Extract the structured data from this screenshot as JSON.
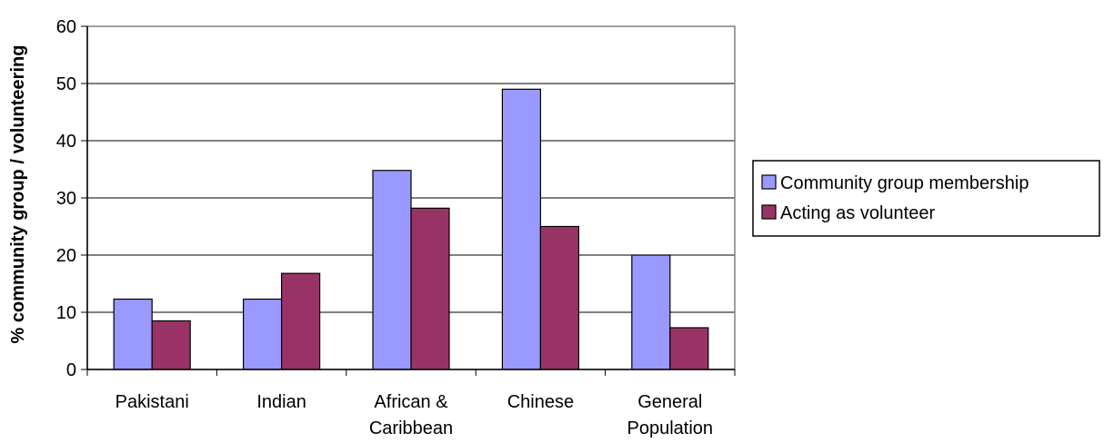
{
  "chart_data": {
    "type": "bar",
    "title": "",
    "xlabel": "",
    "ylabel": "% community group / volunteering",
    "ylim": [
      0,
      60
    ],
    "yticks": [
      0,
      10,
      20,
      30,
      40,
      50,
      60
    ],
    "grid": "horizontal",
    "legend_position": "right",
    "categories": [
      [
        "Pakistani"
      ],
      [
        "Indian"
      ],
      [
        "African &",
        "Caribbean"
      ],
      [
        "Chinese"
      ],
      [
        "General",
        "Population"
      ]
    ],
    "series": [
      {
        "name": "Community group membership",
        "color": "#9999ff",
        "values": [
          12.3,
          12.3,
          34.8,
          49,
          20
        ]
      },
      {
        "name": "Acting as volunteer",
        "color": "#993366",
        "values": [
          8.5,
          16.8,
          28.2,
          25,
          7.3
        ]
      }
    ]
  }
}
